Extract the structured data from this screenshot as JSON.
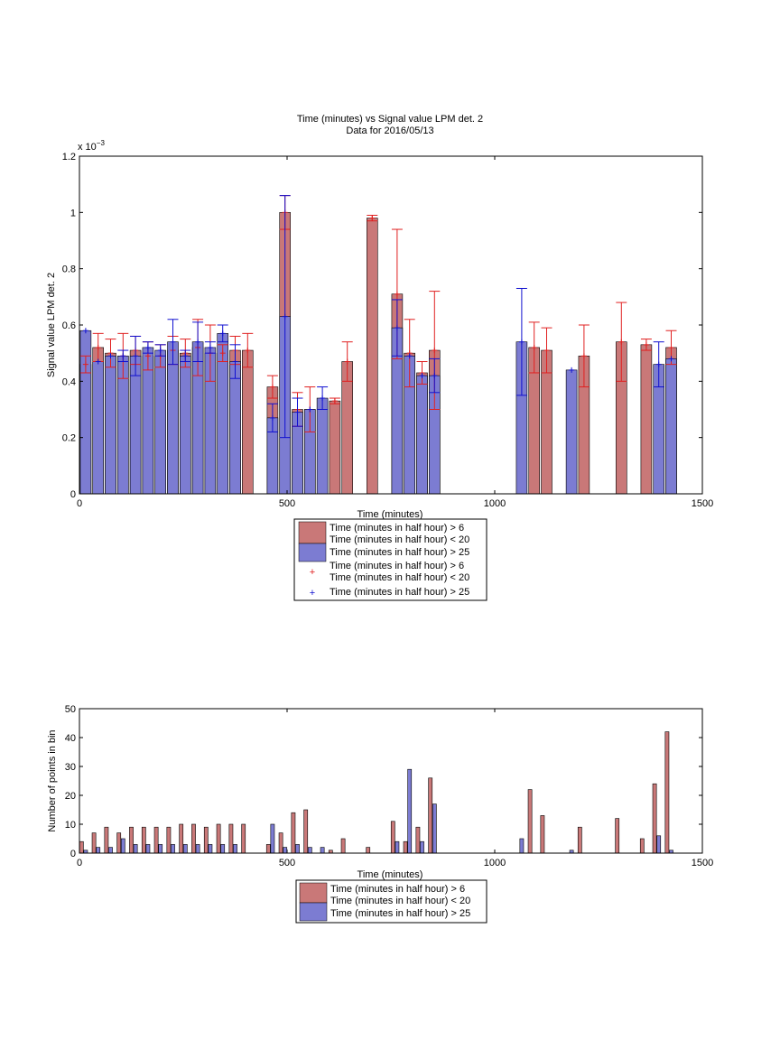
{
  "colors": {
    "red_fill": "#c97878",
    "red_err": "#e02020",
    "blue_fill": "#7c7cd2",
    "blue_err": "#1010d0"
  },
  "top_exponent": "x 10",
  "top_exponent_power": "−3",
  "chart_data": [
    {
      "type": "bar",
      "title": "Time (minutes) vs Signal value LPM det. 2",
      "subtitle": "Data for 2016/05/13",
      "xlabel": "Time (minutes)",
      "ylabel": "Signal value LPM det. 2",
      "xlim": [
        0,
        1500
      ],
      "ylim": [
        0,
        0.0012
      ],
      "xticks": [
        0,
        500,
        1000,
        1500
      ],
      "yticks": [
        0,
        0.0002,
        0.0004,
        0.0006,
        0.0008,
        0.001,
        0.0012
      ],
      "ytick_labels": [
        "0",
        "0.2",
        "0.4",
        "0.6",
        "0.8",
        "1",
        "1.2"
      ],
      "grid": false,
      "legend_position": "below",
      "legend": [
        "Time (minutes in half hour) > 6",
        "Time (minutes in half hour) < 20",
        "Time (minutes in half hour) > 25",
        "Time (minutes in half hour) > 6",
        "Time (minutes in half hour) < 20",
        "Time (minutes in half hour) > 25"
      ],
      "bar_width": 26,
      "series": [
        {
          "color": "red",
          "points": [
            {
              "x": 15,
              "y": 0.00046,
              "err": 3e-05
            },
            {
              "x": 45,
              "y": 0.00052,
              "err": 5e-05
            },
            {
              "x": 75,
              "y": 0.0005,
              "err": 5e-05
            },
            {
              "x": 105,
              "y": 0.00049,
              "err": 8e-05
            },
            {
              "x": 135,
              "y": 0.00051,
              "err": 5e-05
            },
            {
              "x": 165,
              "y": 0.00049,
              "err": 5e-05
            },
            {
              "x": 195,
              "y": 0.00049,
              "err": 4e-05
            },
            {
              "x": 225,
              "y": 0.00051,
              "err": 5e-05
            },
            {
              "x": 255,
              "y": 0.0005,
              "err": 5e-05
            },
            {
              "x": 285,
              "y": 0.00052,
              "err": 0.0001
            },
            {
              "x": 315,
              "y": 0.0005,
              "err": 0.0001
            },
            {
              "x": 345,
              "y": 0.0005,
              "err": 3e-05
            },
            {
              "x": 375,
              "y": 0.00051,
              "err": 5e-05
            },
            {
              "x": 405,
              "y": 0.00051,
              "err": 6e-05
            },
            {
              "x": 465,
              "y": 0.00038,
              "err": 4e-05
            },
            {
              "x": 495,
              "y": 0.001,
              "err": 6e-05
            },
            {
              "x": 525,
              "y": 0.0003,
              "err": 6e-05
            },
            {
              "x": 555,
              "y": 0.0003,
              "err": 8e-05
            },
            {
              "x": 615,
              "y": 0.00033,
              "err": 1e-05
            },
            {
              "x": 645,
              "y": 0.00047,
              "err": 7e-05
            },
            {
              "x": 705,
              "y": 0.00098,
              "err": 1e-05
            },
            {
              "x": 765,
              "y": 0.00071,
              "err": 0.00023
            },
            {
              "x": 795,
              "y": 0.0005,
              "err": 0.00012
            },
            {
              "x": 825,
              "y": 0.00043,
              "err": 4e-05
            },
            {
              "x": 855,
              "y": 0.00051,
              "err": 0.00021
            },
            {
              "x": 1095,
              "y": 0.00052,
              "err": 9e-05
            },
            {
              "x": 1125,
              "y": 0.00051,
              "err": 8e-05
            },
            {
              "x": 1215,
              "y": 0.00049,
              "err": 0.00011
            },
            {
              "x": 1305,
              "y": 0.00054,
              "err": 0.00014
            },
            {
              "x": 1365,
              "y": 0.00053,
              "err": 2e-05
            },
            {
              "x": 1425,
              "y": 0.00052,
              "err": 6e-05
            }
          ]
        },
        {
          "color": "blue",
          "points": [
            {
              "x": 15,
              "y": 0.00058,
              "err": 0.0
            },
            {
              "x": 45,
              "y": 0.00047,
              "err": 0.0
            },
            {
              "x": 75,
              "y": 0.00049,
              "err": 0.0
            },
            {
              "x": 105,
              "y": 0.00049,
              "err": 2e-05
            },
            {
              "x": 135,
              "y": 0.00049,
              "err": 7e-05
            },
            {
              "x": 165,
              "y": 0.00052,
              "err": 2e-05
            },
            {
              "x": 195,
              "y": 0.00051,
              "err": 2e-05
            },
            {
              "x": 225,
              "y": 0.00054,
              "err": 8e-05
            },
            {
              "x": 255,
              "y": 0.00049,
              "err": 2e-05
            },
            {
              "x": 285,
              "y": 0.00054,
              "err": 7e-05
            },
            {
              "x": 315,
              "y": 0.00052,
              "err": 2e-05
            },
            {
              "x": 345,
              "y": 0.00057,
              "err": 3e-05
            },
            {
              "x": 375,
              "y": 0.00047,
              "err": 6e-05
            },
            {
              "x": 465,
              "y": 0.00027,
              "err": 5e-05
            },
            {
              "x": 495,
              "y": 0.00063,
              "err": 0.00043
            },
            {
              "x": 525,
              "y": 0.00029,
              "err": 5e-05
            },
            {
              "x": 555,
              "y": 0.0003,
              "err": 0.0
            },
            {
              "x": 585,
              "y": 0.00034,
              "err": 4e-05
            },
            {
              "x": 765,
              "y": 0.00059,
              "err": 0.0001
            },
            {
              "x": 795,
              "y": 0.00049,
              "err": 0.0
            },
            {
              "x": 825,
              "y": 0.00042,
              "err": 0.0
            },
            {
              "x": 855,
              "y": 0.00042,
              "err": 6e-05
            },
            {
              "x": 1065,
              "y": 0.00054,
              "err": 0.00019
            },
            {
              "x": 1185,
              "y": 0.00044,
              "err": 0.0
            },
            {
              "x": 1395,
              "y": 0.00046,
              "err": 8e-05
            },
            {
              "x": 1425,
              "y": 0.00048,
              "err": 0.0
            }
          ]
        }
      ]
    },
    {
      "type": "bar",
      "xlabel": "Time (minutes)",
      "ylabel": "Number of points in bin",
      "xlim": [
        0,
        1500
      ],
      "ylim": [
        0,
        50
      ],
      "xticks": [
        0,
        500,
        1000,
        1500
      ],
      "yticks": [
        0,
        10,
        20,
        30,
        40,
        50
      ],
      "grid": false,
      "legend_position": "below",
      "legend": [
        "Time (minutes in half hour) > 6",
        "Time (minutes in half hour) < 20",
        "Time (minutes in half hour) > 25"
      ],
      "bar_width": 9,
      "series": [
        {
          "color": "red",
          "points": [
            {
              "x": 5,
              "y": 4
            },
            {
              "x": 35,
              "y": 7
            },
            {
              "x": 65,
              "y": 9
            },
            {
              "x": 95,
              "y": 7
            },
            {
              "x": 125,
              "y": 9
            },
            {
              "x": 155,
              "y": 9
            },
            {
              "x": 185,
              "y": 9
            },
            {
              "x": 215,
              "y": 9
            },
            {
              "x": 245,
              "y": 10
            },
            {
              "x": 275,
              "y": 10
            },
            {
              "x": 305,
              "y": 9
            },
            {
              "x": 335,
              "y": 10
            },
            {
              "x": 365,
              "y": 10
            },
            {
              "x": 395,
              "y": 10
            },
            {
              "x": 455,
              "y": 3
            },
            {
              "x": 485,
              "y": 7
            },
            {
              "x": 515,
              "y": 14
            },
            {
              "x": 545,
              "y": 15
            },
            {
              "x": 605,
              "y": 1
            },
            {
              "x": 635,
              "y": 5
            },
            {
              "x": 695,
              "y": 2
            },
            {
              "x": 755,
              "y": 11
            },
            {
              "x": 785,
              "y": 4
            },
            {
              "x": 815,
              "y": 9
            },
            {
              "x": 845,
              "y": 26
            },
            {
              "x": 1085,
              "y": 22
            },
            {
              "x": 1115,
              "y": 13
            },
            {
              "x": 1205,
              "y": 9
            },
            {
              "x": 1295,
              "y": 12
            },
            {
              "x": 1355,
              "y": 5
            },
            {
              "x": 1385,
              "y": 24
            },
            {
              "x": 1415,
              "y": 42
            }
          ]
        },
        {
          "color": "blue",
          "points": [
            {
              "x": 15,
              "y": 1
            },
            {
              "x": 45,
              "y": 2
            },
            {
              "x": 75,
              "y": 2
            },
            {
              "x": 105,
              "y": 5
            },
            {
              "x": 135,
              "y": 3
            },
            {
              "x": 165,
              "y": 3
            },
            {
              "x": 195,
              "y": 3
            },
            {
              "x": 225,
              "y": 3
            },
            {
              "x": 255,
              "y": 3
            },
            {
              "x": 285,
              "y": 3
            },
            {
              "x": 315,
              "y": 3
            },
            {
              "x": 345,
              "y": 3
            },
            {
              "x": 375,
              "y": 3
            },
            {
              "x": 465,
              "y": 10
            },
            {
              "x": 495,
              "y": 2
            },
            {
              "x": 525,
              "y": 3
            },
            {
              "x": 555,
              "y": 2
            },
            {
              "x": 585,
              "y": 2
            },
            {
              "x": 765,
              "y": 4
            },
            {
              "x": 795,
              "y": 29
            },
            {
              "x": 825,
              "y": 4
            },
            {
              "x": 855,
              "y": 17
            },
            {
              "x": 1065,
              "y": 5
            },
            {
              "x": 1185,
              "y": 1
            },
            {
              "x": 1395,
              "y": 6
            },
            {
              "x": 1425,
              "y": 1
            }
          ]
        }
      ]
    }
  ]
}
